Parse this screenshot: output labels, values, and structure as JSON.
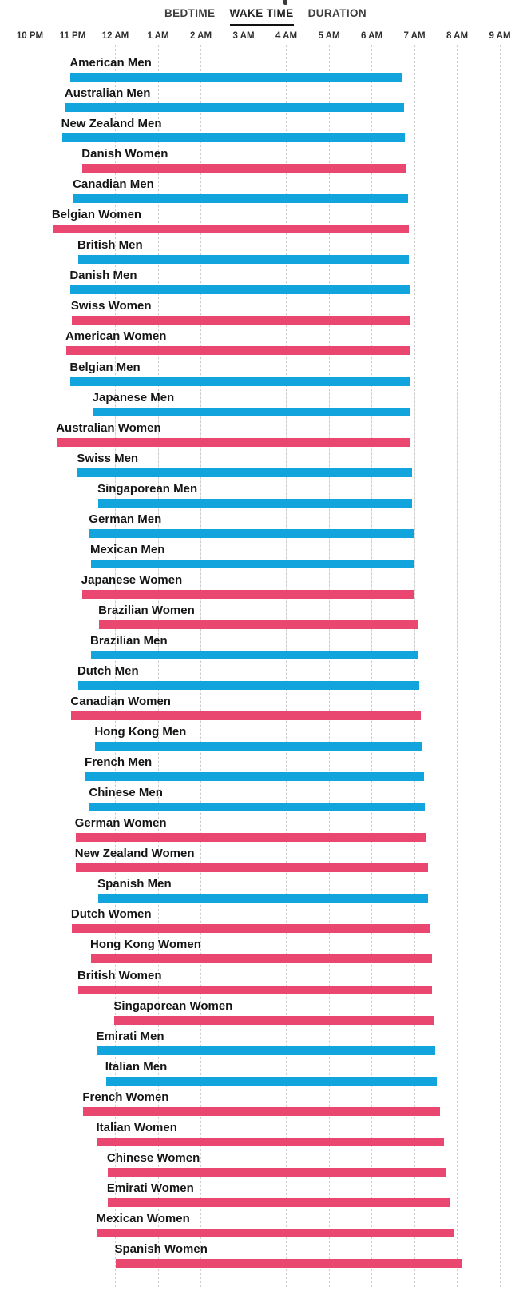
{
  "tabs": [
    {
      "label": "BEDTIME",
      "selected": false
    },
    {
      "label": "WAKE TIME",
      "selected": true
    },
    {
      "label": "DURATION",
      "selected": false
    }
  ],
  "colors": {
    "men_bar": "#12A4DC",
    "women_bar": "#E9476F",
    "gridline": "#CCCCCC",
    "selected_tab_underline": "#111111",
    "label_text": "#151515"
  },
  "chart_data": {
    "type": "bar",
    "subtype": "horizontal-time-range",
    "title": "",
    "xlabel": "",
    "ylabel": "",
    "sorted_by": "wake time ascending",
    "x_axis": {
      "tick_labels": [
        "10 PM",
        "11 PM",
        "12 AM",
        "1 AM",
        "2 AM",
        "3 AM",
        "4 AM",
        "5 AM",
        "6 AM",
        "7 AM",
        "8 AM",
        "9 AM"
      ],
      "origin_label": "10 PM",
      "hours_shown": 11,
      "grid": "dashed-vertical"
    },
    "legend": {
      "men_color": "#12A4DC",
      "women_color": "#E9476F",
      "position": "none"
    },
    "series": [
      {
        "label": "American Men",
        "group": "men",
        "bedtime": "10:57 PM",
        "wake_time": "6:42 AM",
        "start": 0.95,
        "end": 8.7
      },
      {
        "label": "Australian Men",
        "group": "men",
        "bedtime": "10:50 PM",
        "wake_time": "6:45 AM",
        "start": 0.83,
        "end": 8.75
      },
      {
        "label": "New Zealand Men",
        "group": "men",
        "bedtime": "10:45 PM",
        "wake_time": "6:47 AM",
        "start": 0.75,
        "end": 8.78
      },
      {
        "label": "Danish Women",
        "group": "women",
        "bedtime": "11:14 PM",
        "wake_time": "6:49 AM",
        "start": 1.23,
        "end": 8.82
      },
      {
        "label": "Canadian Men",
        "group": "men",
        "bedtime": "11:01 PM",
        "wake_time": "6:51 AM",
        "start": 1.02,
        "end": 8.85
      },
      {
        "label": "Belgian Women",
        "group": "women",
        "bedtime": "10:32 PM",
        "wake_time": "6:52 AM",
        "start": 0.53,
        "end": 8.87
      },
      {
        "label": "British Men",
        "group": "men",
        "bedtime": "11:08 PM",
        "wake_time": "6:52 AM",
        "start": 1.13,
        "end": 8.87
      },
      {
        "label": "Danish Men",
        "group": "men",
        "bedtime": "10:57 PM",
        "wake_time": "6:53 AM",
        "start": 0.95,
        "end": 8.88
      },
      {
        "label": "Swiss Women",
        "group": "women",
        "bedtime": "10:59 PM",
        "wake_time": "6:53 AM",
        "start": 0.98,
        "end": 8.88
      },
      {
        "label": "American Women",
        "group": "women",
        "bedtime": "10:51 PM",
        "wake_time": "6:54 AM",
        "start": 0.85,
        "end": 8.9
      },
      {
        "label": "Belgian Men",
        "group": "men",
        "bedtime": "10:57 PM",
        "wake_time": "6:54 AM",
        "start": 0.95,
        "end": 8.9
      },
      {
        "label": "Japanese Men",
        "group": "men",
        "bedtime": "11:29 PM",
        "wake_time": "6:54 AM",
        "start": 1.48,
        "end": 8.9
      },
      {
        "label": "Australian Women",
        "group": "women",
        "bedtime": "10:38 PM",
        "wake_time": "6:54 AM",
        "start": 0.63,
        "end": 8.9
      },
      {
        "label": "Swiss Men",
        "group": "men",
        "bedtime": "11:07 PM",
        "wake_time": "6:57 AM",
        "start": 1.12,
        "end": 8.95
      },
      {
        "label": "Singaporean Men",
        "group": "men",
        "bedtime": "11:36 PM",
        "wake_time": "6:57 AM",
        "start": 1.6,
        "end": 8.95
      },
      {
        "label": "German Men",
        "group": "men",
        "bedtime": "11:24 PM",
        "wake_time": "6:59 AM",
        "start": 1.4,
        "end": 8.98
      },
      {
        "label": "Mexican Men",
        "group": "men",
        "bedtime": "11:26 PM",
        "wake_time": "6:59 AM",
        "start": 1.43,
        "end": 8.98
      },
      {
        "label": "Japanese Women",
        "group": "women",
        "bedtime": "11:13 PM",
        "wake_time": "7:00 AM",
        "start": 1.22,
        "end": 9.0
      },
      {
        "label": "Brazilian Women",
        "group": "women",
        "bedtime": "11:37 PM",
        "wake_time": "7:05 AM",
        "start": 1.62,
        "end": 9.08
      },
      {
        "label": "Brazilian Men",
        "group": "men",
        "bedtime": "11:26 PM",
        "wake_time": "7:06 AM",
        "start": 1.43,
        "end": 9.1
      },
      {
        "label": "Dutch Men",
        "group": "men",
        "bedtime": "11:08 PM",
        "wake_time": "7:07 AM",
        "start": 1.13,
        "end": 9.12
      },
      {
        "label": "Canadian Women",
        "group": "women",
        "bedtime": "10:58 PM",
        "wake_time": "7:09 AM",
        "start": 0.97,
        "end": 9.15
      },
      {
        "label": "Hong Kong Men",
        "group": "men",
        "bedtime": "11:32 PM",
        "wake_time": "7:11 AM",
        "start": 1.53,
        "end": 9.18
      },
      {
        "label": "French Men",
        "group": "men",
        "bedtime": "11:18 PM",
        "wake_time": "7:13 AM",
        "start": 1.3,
        "end": 9.22
      },
      {
        "label": "Chinese Men",
        "group": "men",
        "bedtime": "11:24 PM",
        "wake_time": "7:15 AM",
        "start": 1.4,
        "end": 9.25
      },
      {
        "label": "German Women",
        "group": "women",
        "bedtime": "11:04 PM",
        "wake_time": "7:16 AM",
        "start": 1.07,
        "end": 9.27
      },
      {
        "label": "New Zealand Women",
        "group": "women",
        "bedtime": "11:04 PM",
        "wake_time": "7:19 AM",
        "start": 1.07,
        "end": 9.32
      },
      {
        "label": "Spanish Men",
        "group": "men",
        "bedtime": "11:36 PM",
        "wake_time": "7:19 AM",
        "start": 1.6,
        "end": 9.32
      },
      {
        "label": "Dutch Women",
        "group": "women",
        "bedtime": "10:59 PM",
        "wake_time": "7:22 AM",
        "start": 0.98,
        "end": 9.37
      },
      {
        "label": "Hong Kong Women",
        "group": "women",
        "bedtime": "11:26 PM",
        "wake_time": "7:25 AM",
        "start": 1.43,
        "end": 9.42
      },
      {
        "label": "British Women",
        "group": "women",
        "bedtime": "11:08 PM",
        "wake_time": "7:25 AM",
        "start": 1.13,
        "end": 9.42
      },
      {
        "label": "Singaporean Women",
        "group": "women",
        "bedtime": "11:59 PM",
        "wake_time": "7:28 AM",
        "start": 1.98,
        "end": 9.47
      },
      {
        "label": "Emirati Men",
        "group": "men",
        "bedtime": "11:34 PM",
        "wake_time": "7:29 AM",
        "start": 1.57,
        "end": 9.48
      },
      {
        "label": "Italian Men",
        "group": "men",
        "bedtime": "11:47 PM",
        "wake_time": "7:32 AM",
        "start": 1.78,
        "end": 9.53
      },
      {
        "label": "French Women",
        "group": "women",
        "bedtime": "11:15 PM",
        "wake_time": "7:36 AM",
        "start": 1.25,
        "end": 9.6
      },
      {
        "label": "Italian Women",
        "group": "women",
        "bedtime": "11:34 PM",
        "wake_time": "7:42 AM",
        "start": 1.57,
        "end": 9.7
      },
      {
        "label": "Chinese Women",
        "group": "women",
        "bedtime": "11:49 PM",
        "wake_time": "7:44 AM",
        "start": 1.82,
        "end": 9.73
      },
      {
        "label": "Emirati Women",
        "group": "women",
        "bedtime": "11:49 PM",
        "wake_time": "7:49 AM",
        "start": 1.82,
        "end": 9.82
      },
      {
        "label": "Mexican Women",
        "group": "women",
        "bedtime": "11:34 PM",
        "wake_time": "7:56 AM",
        "start": 1.57,
        "end": 9.93
      },
      {
        "label": "Spanish Women",
        "group": "women",
        "bedtime": "12:00 AM",
        "wake_time": "8:08 AM",
        "start": 2.0,
        "end": 10.13
      }
    ]
  }
}
